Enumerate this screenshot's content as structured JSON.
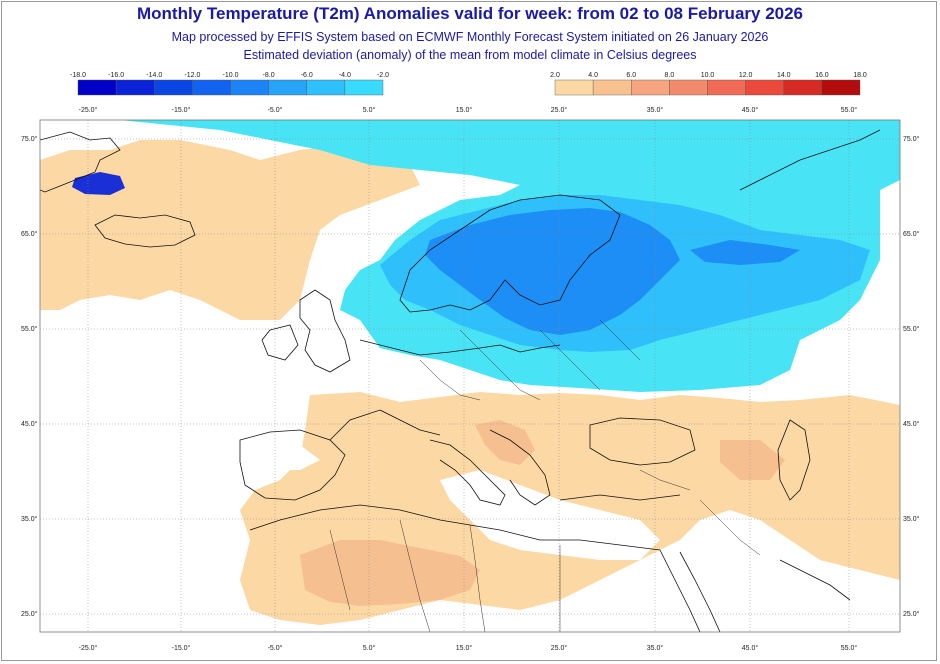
{
  "title": "Monthly Temperature (T2m) Anomalies valid for week: from 02 to 08 February 2026",
  "subtitle_line1": "Map processed by EFFIS System based on ECMWF Monthly Forecast System initiated on 26 January 2026",
  "subtitle_line2": "Estimated deviation (anomaly) of the mean from model climate in Celsius degrees",
  "legend_cold": {
    "labels": [
      "-18.0",
      "-16.0",
      "-14.0",
      "-12.0",
      "-10.0",
      "-8.0",
      "-6.0",
      "-4.0",
      "-2.0"
    ],
    "colors": [
      "#0000c8",
      "#0a22d8",
      "#0b45e3",
      "#1264ef",
      "#1c84f5",
      "#27a3f8",
      "#2fc0fb",
      "#38dafd"
    ]
  },
  "legend_warm": {
    "labels": [
      "2.0",
      "4.0",
      "6.0",
      "8.0",
      "10.0",
      "12.0",
      "14.0",
      "16.0",
      "18.0"
    ],
    "colors": [
      "#fcd9a4",
      "#f8c190",
      "#f5a680",
      "#f38a6c",
      "#f06a55",
      "#e94a3c",
      "#d62a24",
      "#b30c0c"
    ]
  },
  "top_lon_labels": [
    "-25.0°",
    "-15.0°",
    "-5.0°",
    "5.0°",
    "15.0°",
    "25.0°",
    "35.0°",
    "45.0°",
    "55.0°"
  ],
  "bottom_lon_labels": [
    "-25.0°",
    "-15.0°",
    "-5.0°",
    "5.0°",
    "15.0°",
    "25.0°",
    "35.0°",
    "45.0°",
    "55.0°"
  ],
  "lat_labels": [
    "75.0°",
    "65.0°",
    "55.0°",
    "45.0°",
    "35.0°",
    "25.0°"
  ],
  "colors": {
    "cold_light": "#48e3f5",
    "cold_mid": "#2fc0fb",
    "cold_strong": "#1c8ef5",
    "warm_light": "#fcd9a4",
    "warm_mid": "#f6bf90",
    "coast": "#111111",
    "grid": "#888888",
    "title": "#1a1aa8"
  }
}
